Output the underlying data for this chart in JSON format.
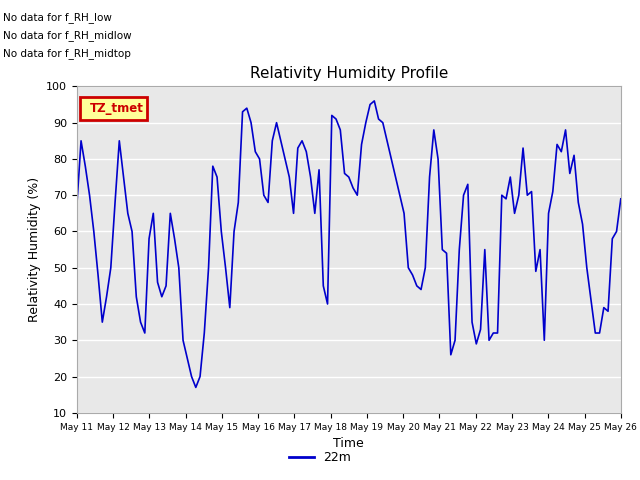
{
  "title": "Relativity Humidity Profile",
  "xlabel": "Time",
  "ylabel": "Relativity Humidity (%)",
  "ylim": [
    10,
    100
  ],
  "yticks": [
    10,
    20,
    30,
    40,
    50,
    60,
    70,
    80,
    90,
    100
  ],
  "line_color": "#0000cc",
  "line_width": 1.2,
  "legend_label": "22m",
  "background_color": "#ffffff",
  "plot_bg_color": "#e8e8e8",
  "grid_color": "#ffffff",
  "annotations": [
    "No data for f_RH_low",
    "No data for f_RH_midlow",
    "No data for f_RH_midtop"
  ],
  "legend_box_text": "TZ_tmet",
  "legend_box_color": "#cc0000",
  "legend_box_bg": "#ffff99",
  "xtick_labels": [
    "May 11",
    "May 12",
    "May 13",
    "May 14",
    "May 15",
    "May 16",
    "May 17",
    "May 18",
    "May 19",
    "May 20",
    "May 21",
    "May 22",
    "May 23",
    "May 24",
    "May 25",
    "May 26"
  ],
  "rh_values": [
    67,
    85,
    78,
    70,
    60,
    48,
    35,
    42,
    50,
    68,
    85,
    75,
    65,
    60,
    42,
    35,
    32,
    58,
    65,
    46,
    42,
    45,
    65,
    58,
    50,
    30,
    25,
    20,
    17,
    20,
    32,
    50,
    78,
    75,
    60,
    50,
    39,
    60,
    68,
    93,
    94,
    90,
    82,
    80,
    70,
    68,
    85,
    90,
    85,
    80,
    75,
    65,
    83,
    85,
    82,
    75,
    65,
    77,
    45,
    40,
    92,
    91,
    88,
    76,
    75,
    72,
    70,
    84,
    90,
    95,
    96,
    91,
    90,
    85,
    80,
    75,
    70,
    65,
    50,
    48,
    45,
    44,
    50,
    75,
    88,
    80,
    55,
    54,
    26,
    30,
    55,
    70,
    73,
    35,
    29,
    33,
    55,
    30,
    32,
    32,
    70,
    69,
    75,
    65,
    70,
    83,
    70,
    71,
    49,
    55,
    30,
    65,
    71,
    84,
    82,
    88,
    76,
    81,
    68,
    62,
    50,
    41,
    32,
    32,
    39,
    38,
    58,
    60,
    69
  ]
}
